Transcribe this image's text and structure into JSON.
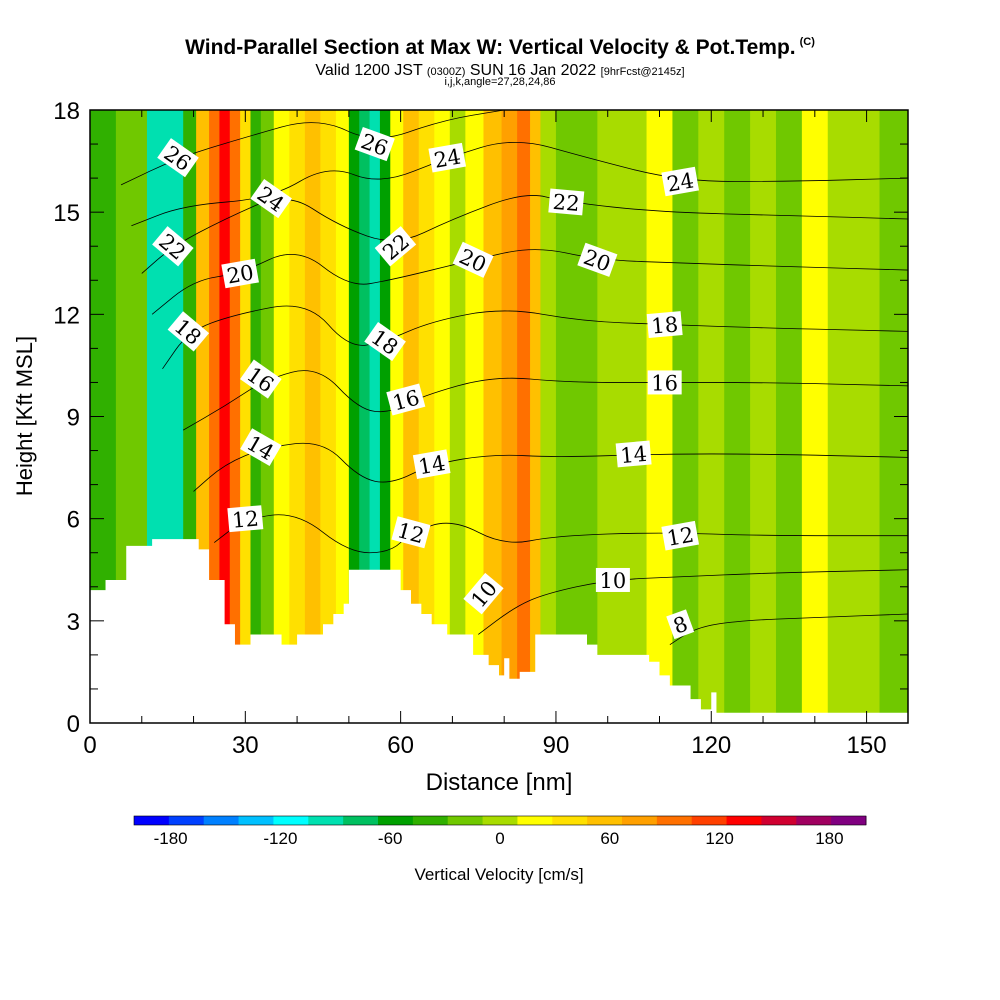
{
  "title": "Wind-Parallel Section at Max W: Vertical Velocity & Pot.Temp.",
  "title_mark": "(C)",
  "subtitle_main_a": "Valid 1200 JST",
  "subtitle_small_a": "(0300Z)",
  "subtitle_main_b": "SUN 16 Jan 2022",
  "subtitle_small_b": "[9hrFcst@2145z]",
  "subtitle2": "i,j,k,angle=27,28,24,86",
  "chart_data": {
    "type": "heatmap",
    "xlabel": "Distance [nm]",
    "ylabel": "Height [Kft MSL]",
    "xlim": [
      0,
      158
    ],
    "ylim": [
      0,
      18
    ],
    "x_ticks": [
      0,
      30,
      60,
      90,
      120,
      150
    ],
    "y_ticks": [
      0,
      3,
      6,
      9,
      12,
      15,
      18
    ],
    "colorbar": {
      "label": "Vertical Velocity [cm/s]",
      "tick_values": [
        -180,
        -120,
        -60,
        0,
        60,
        120,
        180
      ],
      "range": [
        -200,
        200
      ],
      "colors": [
        "#0000ff",
        "#0040ff",
        "#0080ff",
        "#00c0ff",
        "#00ffff",
        "#00e0b0",
        "#00c060",
        "#00a000",
        "#30b000",
        "#70c800",
        "#a8dc00",
        "#ffff00",
        "#ffe000",
        "#ffc000",
        "#ffa000",
        "#ff7000",
        "#ff4000",
        "#ff0000",
        "#d00030",
        "#a00060",
        "#800080"
      ]
    },
    "velocity_columns": [
      {
        "x": 2,
        "value": -30
      },
      {
        "x": 8,
        "value": -20
      },
      {
        "x": 14,
        "value": -90
      },
      {
        "x": 17,
        "value": -100
      },
      {
        "x": 19,
        "value": -40
      },
      {
        "x": 22,
        "value": 60
      },
      {
        "x": 24,
        "value": 100
      },
      {
        "x": 26,
        "value": 140
      },
      {
        "x": 28,
        "value": 100
      },
      {
        "x": 30,
        "value": 30
      },
      {
        "x": 32,
        "value": -40
      },
      {
        "x": 34,
        "value": -10
      },
      {
        "x": 37,
        "value": 20
      },
      {
        "x": 40,
        "value": 40
      },
      {
        "x": 43,
        "value": 60
      },
      {
        "x": 46,
        "value": 40
      },
      {
        "x": 49,
        "value": 10
      },
      {
        "x": 51,
        "value": -50
      },
      {
        "x": 53,
        "value": -80
      },
      {
        "x": 55,
        "value": -100
      },
      {
        "x": 57,
        "value": -60
      },
      {
        "x": 59,
        "value": 20
      },
      {
        "x": 62,
        "value": 60
      },
      {
        "x": 65,
        "value": 40
      },
      {
        "x": 68,
        "value": 20
      },
      {
        "x": 71,
        "value": 0
      },
      {
        "x": 74,
        "value": 20
      },
      {
        "x": 78,
        "value": 50
      },
      {
        "x": 81,
        "value": 70
      },
      {
        "x": 84,
        "value": 100
      },
      {
        "x": 86,
        "value": 60
      },
      {
        "x": 88,
        "value": 0
      },
      {
        "x": 92,
        "value": -20
      },
      {
        "x": 96,
        "value": -10
      },
      {
        "x": 100,
        "value": 5
      },
      {
        "x": 105,
        "value": -5
      },
      {
        "x": 110,
        "value": 10
      },
      {
        "x": 115,
        "value": -10
      },
      {
        "x": 120,
        "value": 5
      },
      {
        "x": 125,
        "value": -15
      },
      {
        "x": 130,
        "value": 0
      },
      {
        "x": 135,
        "value": -10
      },
      {
        "x": 140,
        "value": 10
      },
      {
        "x": 145,
        "value": -5
      },
      {
        "x": 150,
        "value": 5
      },
      {
        "x": 155,
        "value": -10
      }
    ],
    "terrain": [
      [
        0,
        3.9
      ],
      [
        3,
        4.2
      ],
      [
        6,
        4.2
      ],
      [
        7,
        5.2
      ],
      [
        12,
        5.4
      ],
      [
        19,
        5.4
      ],
      [
        21,
        5.1
      ],
      [
        23,
        4.2
      ],
      [
        26,
        2.9
      ],
      [
        28,
        2.3
      ],
      [
        31,
        2.6
      ],
      [
        33,
        2.6
      ],
      [
        37,
        2.3
      ],
      [
        40,
        2.6
      ],
      [
        43,
        2.6
      ],
      [
        45,
        2.9
      ],
      [
        47,
        3.2
      ],
      [
        49,
        3.5
      ],
      [
        50,
        4.5
      ],
      [
        58,
        4.5
      ],
      [
        60,
        3.9
      ],
      [
        62,
        3.5
      ],
      [
        64,
        3.2
      ],
      [
        66,
        2.9
      ],
      [
        69,
        2.6
      ],
      [
        71,
        2.6
      ],
      [
        74,
        2.0
      ],
      [
        77,
        1.7
      ],
      [
        79,
        1.4
      ],
      [
        80,
        1.9
      ],
      [
        81,
        1.3
      ],
      [
        83,
        1.5
      ],
      [
        86,
        2.6
      ],
      [
        94,
        2.6
      ],
      [
        96,
        2.3
      ],
      [
        98,
        2.0
      ],
      [
        106,
        2.0
      ],
      [
        108,
        1.8
      ],
      [
        110,
        1.4
      ],
      [
        112,
        1.1
      ],
      [
        116,
        0.7
      ],
      [
        118,
        0.4
      ],
      [
        120,
        0.9
      ],
      [
        121,
        0.3
      ],
      [
        158,
        0.3
      ]
    ],
    "theta_contour_labels": [
      {
        "text": "26",
        "x": 17,
        "y": 16.6,
        "angle": 35
      },
      {
        "text": "24",
        "x": 35,
        "y": 15.4,
        "angle": 35
      },
      {
        "text": "22",
        "x": 16,
        "y": 14.0,
        "angle": 40
      },
      {
        "text": "20",
        "x": 29,
        "y": 13.2,
        "angle": -10
      },
      {
        "text": "18",
        "x": 19,
        "y": 11.5,
        "angle": 40
      },
      {
        "text": "16",
        "x": 33,
        "y": 10.1,
        "angle": 35
      },
      {
        "text": "14",
        "x": 33,
        "y": 8.1,
        "angle": 30
      },
      {
        "text": "12",
        "x": 30,
        "y": 6.0,
        "angle": -5
      },
      {
        "text": "26",
        "x": 55,
        "y": 17.0,
        "angle": 20
      },
      {
        "text": "24",
        "x": 69,
        "y": 16.6,
        "angle": -10
      },
      {
        "text": "22",
        "x": 59,
        "y": 14.0,
        "angle": -40
      },
      {
        "text": "20",
        "x": 74,
        "y": 13.6,
        "angle": 25
      },
      {
        "text": "18",
        "x": 57,
        "y": 11.2,
        "angle": 35
      },
      {
        "text": "16",
        "x": 61,
        "y": 9.5,
        "angle": -15
      },
      {
        "text": "14",
        "x": 66,
        "y": 7.6,
        "angle": -10
      },
      {
        "text": "12",
        "x": 62,
        "y": 5.6,
        "angle": 15
      },
      {
        "text": "10",
        "x": 76,
        "y": 3.8,
        "angle": -50
      },
      {
        "text": "22",
        "x": 92,
        "y": 15.3,
        "angle": 5
      },
      {
        "text": "20",
        "x": 98,
        "y": 13.6,
        "angle": 20
      },
      {
        "text": "24",
        "x": 114,
        "y": 15.9,
        "angle": -10
      },
      {
        "text": "18",
        "x": 111,
        "y": 11.7,
        "angle": -5
      },
      {
        "text": "16",
        "x": 111,
        "y": 10.0,
        "angle": 0
      },
      {
        "text": "14",
        "x": 105,
        "y": 7.9,
        "angle": -5
      },
      {
        "text": "12",
        "x": 114,
        "y": 5.5,
        "angle": -10
      },
      {
        "text": "10",
        "x": 101,
        "y": 4.2,
        "angle": 0
      },
      {
        "text": "8",
        "x": 114,
        "y": 2.9,
        "angle": -20
      }
    ],
    "theta_contours": [
      {
        "label": "8",
        "points": [
          [
            112,
            2.3
          ],
          [
            117,
            2.8
          ],
          [
            125,
            3.0
          ],
          [
            140,
            3.1
          ],
          [
            158,
            3.2
          ]
        ]
      },
      {
        "label": "10",
        "points": [
          [
            75,
            2.6
          ],
          [
            82,
            3.4
          ],
          [
            88,
            3.8
          ],
          [
            100,
            4.2
          ],
          [
            115,
            4.3
          ],
          [
            130,
            4.4
          ],
          [
            158,
            4.5
          ]
        ]
      },
      {
        "label": "12",
        "points": [
          [
            24,
            5.3
          ],
          [
            30,
            6.0
          ],
          [
            40,
            6.2
          ],
          [
            50,
            5.0
          ],
          [
            58,
            5.0
          ],
          [
            62,
            5.6
          ],
          [
            70,
            6.0
          ],
          [
            80,
            5.2
          ],
          [
            90,
            5.5
          ],
          [
            110,
            5.6
          ],
          [
            130,
            5.5
          ],
          [
            158,
            5.5
          ]
        ]
      },
      {
        "label": "14",
        "points": [
          [
            20,
            6.8
          ],
          [
            26,
            7.6
          ],
          [
            34,
            8.1
          ],
          [
            45,
            8.3
          ],
          [
            52,
            7.2
          ],
          [
            58,
            7.0
          ],
          [
            66,
            7.6
          ],
          [
            78,
            7.9
          ],
          [
            90,
            7.8
          ],
          [
            110,
            7.9
          ],
          [
            130,
            7.9
          ],
          [
            158,
            7.8
          ]
        ]
      },
      {
        "label": "16",
        "points": [
          [
            18,
            8.6
          ],
          [
            26,
            9.3
          ],
          [
            34,
            10.1
          ],
          [
            44,
            10.5
          ],
          [
            52,
            9.2
          ],
          [
            58,
            9.1
          ],
          [
            64,
            9.6
          ],
          [
            78,
            10.2
          ],
          [
            92,
            10.0
          ],
          [
            111,
            10.0
          ],
          [
            130,
            10.0
          ],
          [
            158,
            9.9
          ]
        ]
      },
      {
        "label": "18",
        "points": [
          [
            14,
            10.4
          ],
          [
            19,
            11.5
          ],
          [
            28,
            12.0
          ],
          [
            42,
            12.4
          ],
          [
            50,
            11.0
          ],
          [
            57,
            11.2
          ],
          [
            66,
            11.8
          ],
          [
            80,
            12.2
          ],
          [
            95,
            11.8
          ],
          [
            111,
            11.7
          ],
          [
            130,
            11.6
          ],
          [
            158,
            11.5
          ]
        ]
      },
      {
        "label": "20",
        "points": [
          [
            12,
            12.0
          ],
          [
            20,
            13.0
          ],
          [
            29,
            13.2
          ],
          [
            40,
            14.0
          ],
          [
            50,
            12.8
          ],
          [
            58,
            13.0
          ],
          [
            74,
            13.6
          ],
          [
            86,
            14.0
          ],
          [
            98,
            13.6
          ],
          [
            115,
            13.5
          ],
          [
            135,
            13.4
          ],
          [
            158,
            13.3
          ]
        ]
      },
      {
        "label": "22",
        "points": [
          [
            10,
            13.2
          ],
          [
            16,
            14.0
          ],
          [
            26,
            14.8
          ],
          [
            38,
            15.6
          ],
          [
            48,
            14.6
          ],
          [
            59,
            14.0
          ],
          [
            70,
            14.8
          ],
          [
            84,
            15.6
          ],
          [
            92,
            15.3
          ],
          [
            110,
            15.0
          ],
          [
            135,
            14.9
          ],
          [
            158,
            14.8
          ]
        ]
      },
      {
        "label": "24",
        "points": [
          [
            8,
            14.6
          ],
          [
            18,
            15.2
          ],
          [
            35,
            15.4
          ],
          [
            46,
            16.4
          ],
          [
            56,
            15.8
          ],
          [
            69,
            16.6
          ],
          [
            82,
            17.2
          ],
          [
            96,
            16.6
          ],
          [
            114,
            15.9
          ],
          [
            135,
            15.9
          ],
          [
            158,
            16.0
          ]
        ]
      },
      {
        "label": "26",
        "points": [
          [
            6,
            15.8
          ],
          [
            17,
            16.6
          ],
          [
            30,
            17.2
          ],
          [
            44,
            17.8
          ],
          [
            55,
            17.0
          ],
          [
            68,
            17.7
          ],
          [
            80,
            18.0
          ]
        ]
      }
    ]
  }
}
